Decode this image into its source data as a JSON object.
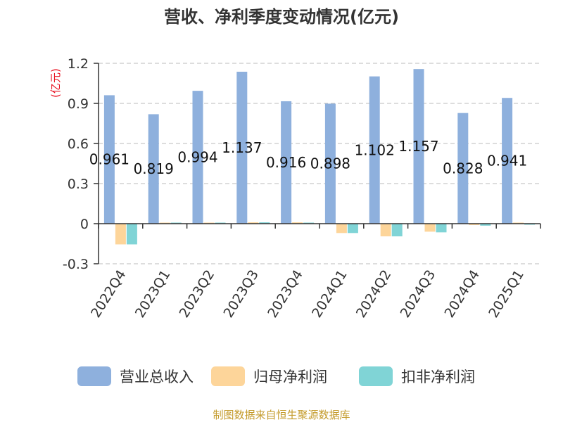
{
  "chart_data": {
    "type": "bar",
    "title": "营收、净利季度变动情况(亿元)",
    "ylabel": "(亿元)",
    "xlabel": "",
    "categories": [
      "2022Q4",
      "2023Q1",
      "2023Q2",
      "2023Q3",
      "2023Q4",
      "2024Q1",
      "2024Q2",
      "2024Q3",
      "2024Q4",
      "2025Q1"
    ],
    "ylim": [
      -0.3,
      1.2
    ],
    "yticks": [
      -0.3,
      0,
      0.3,
      0.6,
      0.9,
      1.2
    ],
    "ytick_labels": [
      "-0.3",
      "0",
      "0.3",
      "0.6",
      "0.9",
      "1.2"
    ],
    "grid": true,
    "legend_position": "bottom",
    "series": [
      {
        "name": "营业总收入",
        "color": "#8eb0dd",
        "values": [
          0.961,
          0.819,
          0.994,
          1.137,
          0.916,
          0.898,
          1.102,
          1.157,
          0.828,
          0.941
        ],
        "labels": [
          "0.961",
          "0.819",
          "0.994",
          "1.137",
          "0.916",
          "0.898",
          "1.102",
          "1.157",
          "0.828",
          "0.941"
        ]
      },
      {
        "name": "归母净利润",
        "color": "#fdd59a",
        "values": [
          -0.155,
          0.0,
          0.0,
          0.01,
          0.01,
          -0.07,
          -0.095,
          -0.06,
          -0.01,
          0.005
        ]
      },
      {
        "name": "扣非净利润",
        "color": "#80d4d6",
        "values": [
          -0.155,
          0.0,
          0.0,
          0.01,
          0.0,
          -0.07,
          -0.095,
          -0.065,
          -0.015,
          -0.005
        ]
      }
    ]
  },
  "source": "制图数据来自恒生聚源数据库"
}
